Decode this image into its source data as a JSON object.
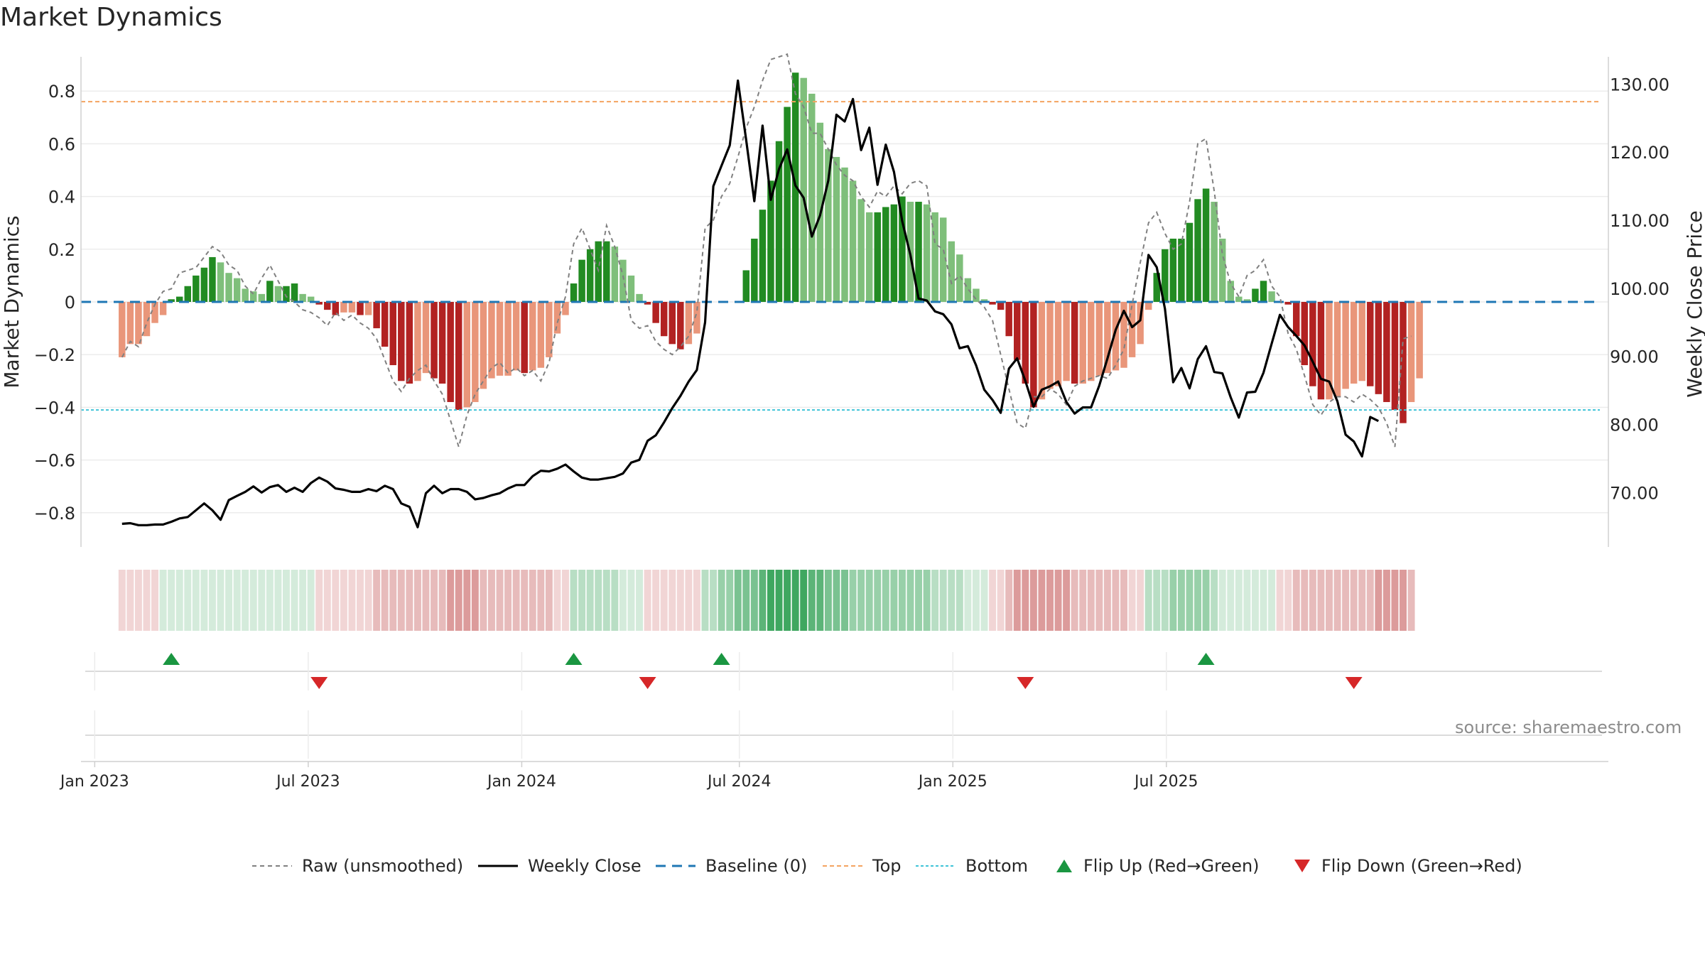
{
  "chart_data": {
    "type": "bar",
    "title": "Market Dynamics",
    "ylabel_left": "Market Dynamics",
    "ylabel_right": "Weekly Close Price",
    "ylim_left": [
      -0.93,
      0.93
    ],
    "yticks_left": [
      "0.8",
      "0.6",
      "0.4",
      "0.2",
      "0",
      "−0.2",
      "−0.4",
      "−0.6",
      "−0.8"
    ],
    "ylim_right": [
      62,
      134
    ],
    "yticks_right": [
      "130.00",
      "120.00",
      "110.00",
      "100.00",
      "90.00",
      "80.00",
      "70.00"
    ],
    "xticks": [
      "Jan 2023",
      "Jul 2023",
      "Jan 2024",
      "Jul 2024",
      "Jan 2025",
      "Jul 2025"
    ],
    "x_range_weeks": [
      -5,
      181
    ],
    "top_threshold": 0.76,
    "bottom_threshold": -0.41,
    "baseline": 0,
    "bar_values": [
      -0.21,
      -0.16,
      -0.16,
      -0.13,
      -0.08,
      -0.05,
      0.01,
      0.02,
      0.06,
      0.1,
      0.13,
      0.17,
      0.15,
      0.11,
      0.09,
      0.05,
      0.04,
      0.03,
      0.08,
      0.06,
      0.06,
      0.07,
      0.03,
      0.02,
      -0.01,
      -0.03,
      -0.05,
      -0.04,
      -0.04,
      -0.05,
      -0.05,
      -0.1,
      -0.17,
      -0.24,
      -0.3,
      -0.31,
      -0.3,
      -0.27,
      -0.29,
      -0.31,
      -0.38,
      -0.41,
      -0.4,
      -0.38,
      -0.33,
      -0.29,
      -0.28,
      -0.28,
      -0.26,
      -0.27,
      -0.26,
      -0.25,
      -0.21,
      -0.12,
      -0.05,
      0.07,
      0.16,
      0.2,
      0.23,
      0.23,
      0.21,
      0.16,
      0.1,
      0.03,
      -0.01,
      -0.08,
      -0.13,
      -0.16,
      -0.18,
      -0.16,
      -0.12,
      0.0,
      0.0,
      0.0,
      0.0,
      0.0,
      0.12,
      0.24,
      0.35,
      0.46,
      0.61,
      0.74,
      0.87,
      0.85,
      0.79,
      0.68,
      0.58,
      0.55,
      0.51,
      0.46,
      0.39,
      0.34,
      0.34,
      0.36,
      0.37,
      0.4,
      0.38,
      0.38,
      0.37,
      0.34,
      0.32,
      0.23,
      0.18,
      0.09,
      0.05,
      0.01,
      -0.01,
      -0.03,
      -0.13,
      -0.22,
      -0.31,
      -0.4,
      -0.37,
      -0.33,
      -0.32,
      -0.3,
      -0.31,
      -0.31,
      -0.3,
      -0.28,
      -0.27,
      -0.26,
      -0.25,
      -0.21,
      -0.16,
      -0.03,
      0.11,
      0.2,
      0.24,
      0.24,
      0.3,
      0.39,
      0.43,
      0.38,
      0.24,
      0.08,
      0.02,
      0.01,
      0.05,
      0.08,
      0.04,
      0.0,
      -0.01,
      -0.13,
      -0.24,
      -0.32,
      -0.37,
      -0.37,
      -0.36,
      -0.33,
      -0.31,
      -0.3,
      -0.32,
      -0.35,
      -0.38,
      -0.41,
      -0.46,
      -0.38,
      -0.29
    ],
    "raw_values": [
      -0.21,
      -0.15,
      -0.17,
      -0.08,
      -0.01,
      0.04,
      0.05,
      0.11,
      0.12,
      0.13,
      0.17,
      0.21,
      0.19,
      0.14,
      0.12,
      0.06,
      0.03,
      0.09,
      0.14,
      0.08,
      0.02,
      0.0,
      -0.03,
      -0.04,
      -0.06,
      -0.09,
      -0.04,
      -0.07,
      -0.05,
      -0.08,
      -0.1,
      -0.14,
      -0.22,
      -0.3,
      -0.34,
      -0.29,
      -0.26,
      -0.24,
      -0.3,
      -0.35,
      -0.45,
      -0.55,
      -0.43,
      -0.35,
      -0.3,
      -0.25,
      -0.23,
      -0.27,
      -0.25,
      -0.28,
      -0.26,
      -0.3,
      -0.23,
      -0.08,
      0.02,
      0.22,
      0.28,
      0.2,
      0.12,
      0.29,
      0.21,
      0.1,
      -0.07,
      -0.1,
      -0.09,
      -0.15,
      -0.18,
      -0.2,
      -0.17,
      -0.13,
      -0.04,
      0.28,
      0.31,
      0.4,
      0.45,
      0.55,
      0.66,
      0.74,
      0.84,
      0.92,
      0.93,
      0.94,
      0.79,
      0.74,
      0.64,
      0.64,
      0.58,
      0.52,
      0.48,
      0.46,
      0.4,
      0.36,
      0.42,
      0.4,
      0.44,
      0.41,
      0.45,
      0.46,
      0.44,
      0.22,
      0.2,
      0.07,
      0.1,
      0.05,
      0.01,
      -0.02,
      -0.07,
      -0.2,
      -0.33,
      -0.46,
      -0.48,
      -0.36,
      -0.36,
      -0.33,
      -0.35,
      -0.39,
      -0.32,
      -0.3,
      -0.29,
      -0.28,
      -0.29,
      -0.24,
      -0.18,
      -0.01,
      0.15,
      0.3,
      0.34,
      0.26,
      0.2,
      0.22,
      0.38,
      0.6,
      0.62,
      0.42,
      0.18,
      0.07,
      0.02,
      0.1,
      0.12,
      0.16,
      0.06,
      0.02,
      -0.12,
      -0.18,
      -0.28,
      -0.39,
      -0.43,
      -0.38,
      -0.36,
      -0.36,
      -0.38,
      -0.35,
      -0.37,
      -0.4,
      -0.46,
      -0.55,
      -0.14,
      -0.13
    ],
    "weekly_close": [
      65.4,
      65.5,
      65.2,
      65.2,
      65.3,
      65.3,
      65.7,
      66.2,
      66.4,
      67.4,
      68.4,
      67.4,
      66.0,
      68.9,
      69.5,
      70.1,
      70.9,
      70.0,
      70.8,
      71.1,
      70.1,
      70.7,
      70.1,
      71.4,
      72.2,
      71.6,
      70.6,
      70.4,
      70.1,
      70.1,
      70.5,
      70.2,
      71.0,
      70.5,
      68.4,
      67.9,
      64.9,
      69.9,
      71.0,
      69.9,
      70.5,
      70.5,
      70.1,
      69.0,
      69.2,
      69.6,
      69.9,
      70.6,
      71.1,
      71.1,
      72.4,
      73.2,
      73.1,
      73.5,
      74.1,
      73.1,
      72.2,
      71.9,
      71.9,
      72.1,
      72.3,
      72.8,
      74.4,
      74.8,
      77.6,
      78.4,
      80.3,
      82.4,
      84.2,
      86.3,
      88.0,
      95.0,
      115.0,
      118.0,
      121.0,
      130.5,
      121.8,
      112.8,
      123.9,
      113.0,
      117.5,
      120.4,
      115.1,
      113.3,
      107.6,
      110.7,
      115.8,
      125.5,
      124.5,
      127.8,
      120.3,
      123.6,
      115.2,
      121.1,
      117.1,
      109.9,
      104.9,
      98.5,
      98.2,
      96.6,
      96.2,
      94.7,
      91.2,
      91.5,
      88.7,
      85.1,
      83.6,
      81.7,
      88.2,
      89.7,
      86.4,
      82.6,
      85.1,
      85.6,
      86.3,
      83.3,
      81.6,
      82.5,
      82.5,
      85.7,
      89.7,
      93.9,
      96.7,
      94.3,
      95.3,
      104.9,
      103.1,
      97.0,
      86.2,
      88.3,
      85.3,
      89.6,
      91.5,
      87.7,
      87.5,
      84.0,
      81.0,
      84.7,
      84.8,
      87.6,
      91.9,
      96.1,
      94.3,
      93.0,
      91.6,
      89.2,
      86.7,
      86.3,
      83.4,
      78.5,
      77.5,
      75.3,
      81.1,
      80.5
    ],
    "color_strip_values": [
      -0.13,
      -0.13,
      -0.13,
      -0.13,
      -0.13,
      0.13,
      0.13,
      0.13,
      0.13,
      0.13,
      0.13,
      0.13,
      0.13,
      0.13,
      0.13,
      0.13,
      0.13,
      0.13,
      0.13,
      0.13,
      0.13,
      0.13,
      0.13,
      0.13,
      -0.13,
      -0.13,
      -0.13,
      -0.13,
      -0.13,
      -0.13,
      -0.13,
      -0.25,
      -0.25,
      -0.25,
      -0.25,
      -0.25,
      -0.25,
      -0.25,
      -0.25,
      -0.25,
      -0.38,
      -0.38,
      -0.38,
      -0.38,
      -0.25,
      -0.25,
      -0.25,
      -0.25,
      -0.25,
      -0.25,
      -0.25,
      -0.25,
      -0.25,
      -0.13,
      -0.13,
      0.25,
      0.25,
      0.25,
      0.25,
      0.25,
      0.25,
      0.13,
      0.13,
      0.13,
      -0.13,
      -0.13,
      -0.13,
      -0.13,
      -0.13,
      -0.13,
      -0.13,
      0.25,
      0.25,
      0.38,
      0.38,
      0.5,
      0.5,
      0.5,
      0.63,
      0.75,
      0.75,
      0.75,
      0.75,
      0.75,
      0.63,
      0.63,
      0.5,
      0.5,
      0.5,
      0.38,
      0.38,
      0.38,
      0.38,
      0.38,
      0.38,
      0.38,
      0.38,
      0.38,
      0.38,
      0.25,
      0.25,
      0.25,
      0.25,
      0.13,
      0.13,
      0.13,
      -0.13,
      -0.13,
      -0.25,
      -0.38,
      -0.38,
      -0.38,
      -0.38,
      -0.38,
      -0.38,
      -0.38,
      -0.25,
      -0.25,
      -0.25,
      -0.25,
      -0.25,
      -0.25,
      -0.25,
      -0.13,
      -0.13,
      0.25,
      0.25,
      0.25,
      0.38,
      0.38,
      0.38,
      0.38,
      0.38,
      0.25,
      0.13,
      0.13,
      0.13,
      0.13,
      0.13,
      0.13,
      0.13,
      -0.13,
      -0.13,
      -0.25,
      -0.25,
      -0.25,
      -0.25,
      -0.25,
      -0.25,
      -0.25,
      -0.25,
      -0.25,
      -0.25,
      -0.38,
      -0.38,
      -0.38,
      -0.38,
      -0.25
    ],
    "flip_up_weeks": [
      6,
      55,
      73,
      132
    ],
    "flip_down_weeks": [
      24,
      64,
      110,
      150
    ],
    "colors": {
      "green_strong": "#228b22",
      "green_light": "#7fbf7b",
      "red_strong": "#b22222",
      "red_light": "#e9967a",
      "top_line": "#f4a460",
      "bottom_line": "#40c4d8",
      "baseline": "#1f77b4",
      "close_line": "#000000",
      "raw_line": "#808080",
      "flip_up": "#1a9641",
      "flip_down": "#d62728"
    }
  },
  "legend": {
    "raw": "Raw (unsmoothed)",
    "close": "Weekly Close",
    "baseline": "Baseline (0)",
    "top": "Top",
    "bottom": "Bottom",
    "flip_up": "Flip Up (Red→Green)",
    "flip_down": "Flip Down (Green→Red)"
  },
  "source_text": "source: sharemaestro.com"
}
